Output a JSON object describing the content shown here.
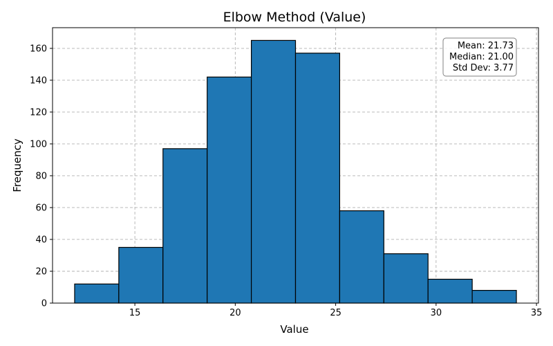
{
  "chart_data": {
    "type": "bar",
    "title": "Elbow Method (Value)",
    "xlabel": "Value",
    "ylabel": "Frequency",
    "bins": [
      {
        "start": 12.0,
        "end": 14.2,
        "count": 12
      },
      {
        "start": 14.2,
        "end": 16.4,
        "count": 35
      },
      {
        "start": 16.4,
        "end": 18.6,
        "count": 97
      },
      {
        "start": 18.6,
        "end": 20.8,
        "count": 142
      },
      {
        "start": 20.8,
        "end": 23.0,
        "count": 165
      },
      {
        "start": 23.0,
        "end": 25.2,
        "count": 157
      },
      {
        "start": 25.2,
        "end": 27.4,
        "count": 58
      },
      {
        "start": 27.4,
        "end": 29.6,
        "count": 31
      },
      {
        "start": 29.6,
        "end": 31.8,
        "count": 15
      },
      {
        "start": 31.8,
        "end": 34.0,
        "count": 8
      }
    ],
    "xlim": [
      10.9,
      35.1
    ],
    "ylim": [
      0,
      173
    ],
    "xticks": [
      15,
      20,
      25,
      30,
      35
    ],
    "yticks": [
      0,
      20,
      40,
      60,
      80,
      100,
      120,
      140,
      160
    ],
    "grid": true,
    "bar_color": "#1f77b4",
    "edge_color": "#000000",
    "stats_box": {
      "position": "top-right",
      "lines": [
        "Mean: 21.73",
        "Median: 21.00",
        "Std Dev: 3.77"
      ]
    }
  }
}
